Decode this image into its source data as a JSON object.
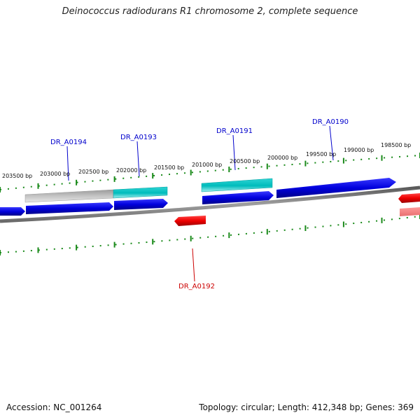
{
  "title": "Deinococcus radiodurans R1 chromosome 2, complete sequence",
  "footer": {
    "accession": "Accession: NC_001264",
    "summary": "Topology: circular; Length: 412,348 bp; Genes: 369"
  },
  "ticks": [
    {
      "label": "203500 bp"
    },
    {
      "label": "203000 bp"
    },
    {
      "label": "202500 bp"
    },
    {
      "label": "202000 bp"
    },
    {
      "label": "201500 bp"
    },
    {
      "label": "201000 bp"
    },
    {
      "label": "200500 bp"
    },
    {
      "label": "200000 bp"
    },
    {
      "label": "199500 bp"
    },
    {
      "label": "199000 bp"
    },
    {
      "label": "198500 bp"
    }
  ],
  "genes": [
    {
      "name": "DR_A0194",
      "strand": "forward",
      "color": "#0000cc"
    },
    {
      "name": "DR_A0193",
      "strand": "forward",
      "color": "#0000cc"
    },
    {
      "name": "DR_A0191",
      "strand": "forward",
      "color": "#0000cc"
    },
    {
      "name": "DR_A0190",
      "strand": "forward",
      "color": "#0000cc"
    },
    {
      "name": "DR_A0192",
      "strand": "reverse",
      "color": "#cc0000"
    }
  ],
  "colors": {
    "forward_gene": "#0000dd",
    "reverse_gene": "#ee0000",
    "feature_cyan": "#00bcbc",
    "feature_grey": "#bbbbbb",
    "backbone": "#808080",
    "tick": "#1a8a1a",
    "label_forward": "#0000cc",
    "label_reverse": "#cc0000"
  }
}
